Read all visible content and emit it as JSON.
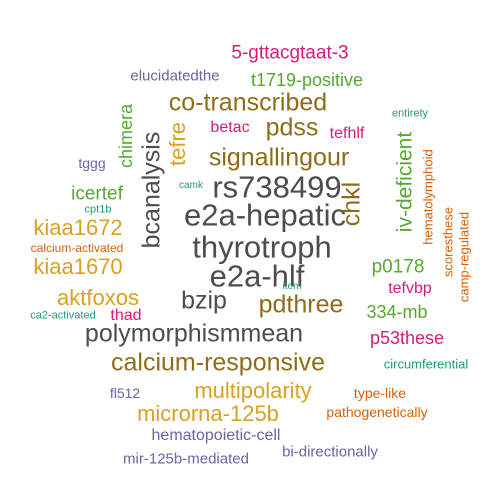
{
  "palette": {
    "gray": "#4d4d4d",
    "olive": "#8c6d1a",
    "gold": "#d9a021",
    "green": "#56a832",
    "magenta": "#d81b7a",
    "purple": "#6b63a6",
    "orange": "#d95f02",
    "teal": "#1b9e77"
  },
  "words": [
    {
      "text": "thyrotroph",
      "color": "gray",
      "rotated": false
    },
    {
      "text": "e2a-hepatic",
      "color": "gray",
      "rotated": false
    },
    {
      "text": "e2a-hlf",
      "color": "gray",
      "rotated": false
    },
    {
      "text": "rs738499",
      "color": "gray",
      "rotated": false
    },
    {
      "text": "bcanalysis",
      "color": "gray",
      "rotated": true
    },
    {
      "text": "polymorphismmean",
      "color": "gray",
      "rotated": false
    },
    {
      "text": "bzip",
      "color": "gray",
      "rotated": false
    },
    {
      "text": "chkl",
      "color": "olive",
      "rotated": true
    },
    {
      "text": "signallingour",
      "color": "olive",
      "rotated": false
    },
    {
      "text": "calcium-responsive",
      "color": "olive",
      "rotated": false
    },
    {
      "text": "pdthree",
      "color": "olive",
      "rotated": false
    },
    {
      "text": "co-transcribed",
      "color": "olive",
      "rotated": false
    },
    {
      "text": "pdss",
      "color": "olive",
      "rotated": false
    },
    {
      "text": "multipolarity",
      "color": "gold",
      "rotated": false
    },
    {
      "text": "microrna-125b",
      "color": "gold",
      "rotated": false
    },
    {
      "text": "aktfoxos",
      "color": "gold",
      "rotated": false
    },
    {
      "text": "kiaa1672",
      "color": "gold",
      "rotated": false
    },
    {
      "text": "kiaa1670",
      "color": "gold",
      "rotated": false
    },
    {
      "text": "tefre",
      "color": "gold",
      "rotated": true
    },
    {
      "text": "iv-deficient",
      "color": "green",
      "rotated": true
    },
    {
      "text": "chimera",
      "color": "green",
      "rotated": true
    },
    {
      "text": "icertef",
      "color": "green",
      "rotated": false
    },
    {
      "text": "p0178",
      "color": "green",
      "rotated": false
    },
    {
      "text": "334-mb",
      "color": "green",
      "rotated": false
    },
    {
      "text": "t1719-positive",
      "color": "green",
      "rotated": false
    },
    {
      "text": "5-gttacgtaat-3",
      "color": "magenta",
      "rotated": false
    },
    {
      "text": "p53these",
      "color": "magenta",
      "rotated": false
    },
    {
      "text": "tefhlf",
      "color": "magenta",
      "rotated": false
    },
    {
      "text": "betac",
      "color": "magenta",
      "rotated": false
    },
    {
      "text": "tefvbp",
      "color": "magenta",
      "rotated": false
    },
    {
      "text": "thad",
      "color": "magenta",
      "rotated": false
    },
    {
      "text": "hematopoietic-cell",
      "color": "purple",
      "rotated": false
    },
    {
      "text": "mir-125b-mediated",
      "color": "purple",
      "rotated": false
    },
    {
      "text": "elucidatedthe",
      "color": "purple",
      "rotated": false
    },
    {
      "text": "bi-directionally",
      "color": "purple",
      "rotated": false
    },
    {
      "text": "tggg",
      "color": "purple",
      "rotated": false
    },
    {
      "text": "fl512",
      "color": "purple",
      "rotated": false
    },
    {
      "text": "pathogenetically",
      "color": "orange",
      "rotated": false
    },
    {
      "text": "type-like",
      "color": "orange",
      "rotated": false
    },
    {
      "text": "hematolymphoid",
      "color": "orange",
      "rotated": true
    },
    {
      "text": "scoresthese",
      "color": "orange",
      "rotated": true
    },
    {
      "text": "camp-regulated",
      "color": "orange",
      "rotated": true
    },
    {
      "text": "calcium-activated",
      "color": "orange",
      "rotated": false
    },
    {
      "text": "circumferential",
      "color": "teal",
      "rotated": false
    },
    {
      "text": "entirety",
      "color": "teal",
      "rotated": false
    },
    {
      "text": "cpt1b",
      "color": "teal",
      "rotated": false
    },
    {
      "text": "camk",
      "color": "teal",
      "rotated": false
    },
    {
      "text": "item",
      "color": "teal",
      "rotated": false
    },
    {
      "text": "ca2-activated",
      "color": "teal",
      "rotated": false
    }
  ]
}
